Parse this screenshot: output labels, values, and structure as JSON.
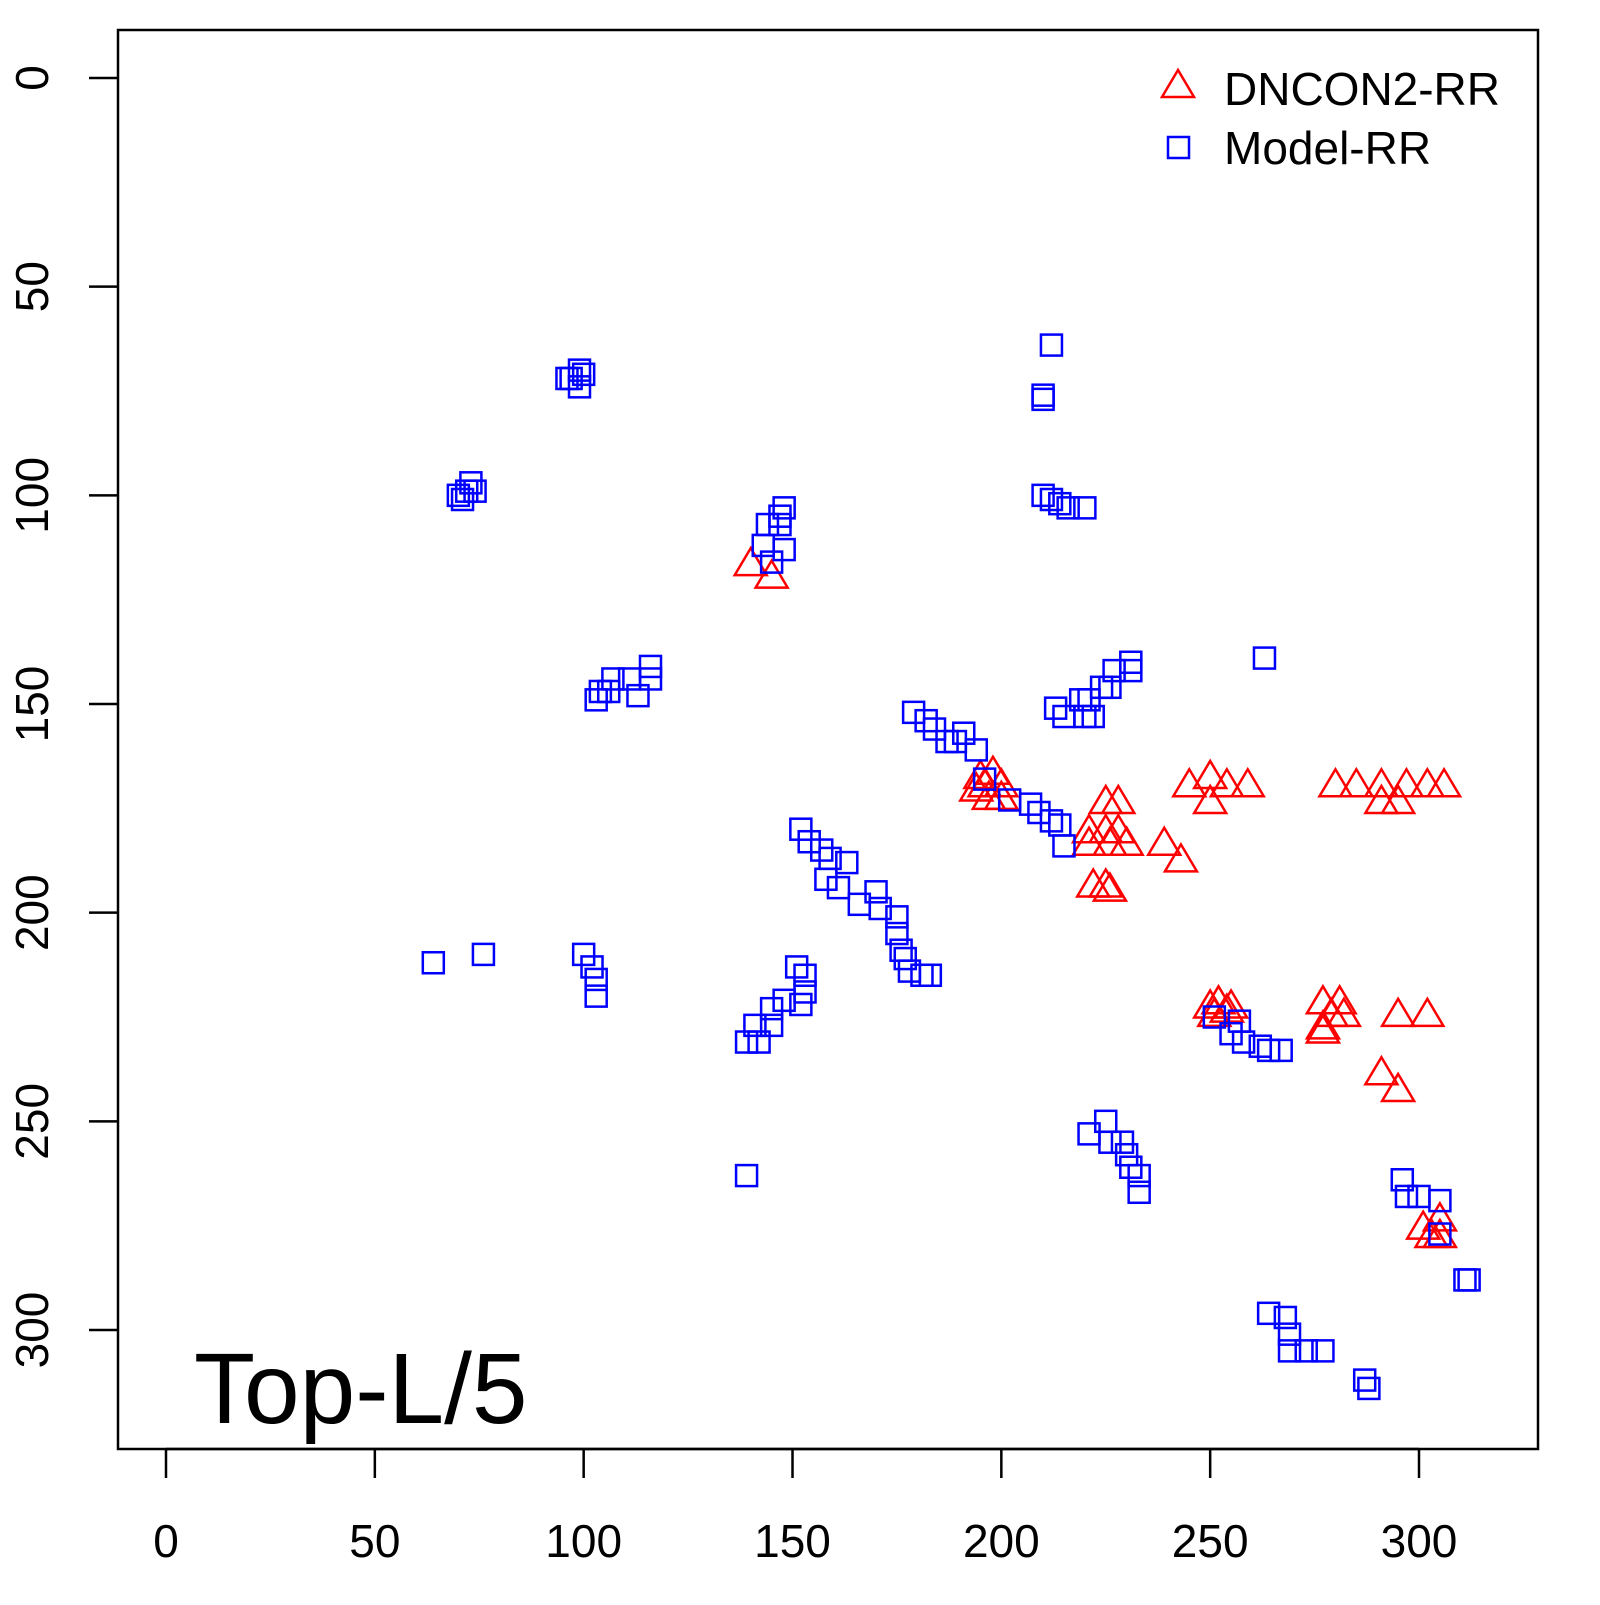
{
  "chart_data": {
    "type": "scatter",
    "title": "",
    "annotation": "Top-L/5",
    "xlabel": "",
    "ylabel": "",
    "xlim": [
      -12,
      328
    ],
    "ylim": [
      -12,
      328
    ],
    "y_inverted": true,
    "x_ticks": [
      0,
      50,
      100,
      150,
      200,
      250,
      300
    ],
    "y_ticks": [
      0,
      50,
      100,
      150,
      200,
      250,
      300
    ],
    "grid": false,
    "legend_position": "top-right",
    "series": [
      {
        "name": "DNCON2-RR",
        "marker": "triangle",
        "color": "#ff0000",
        "points": [
          [
            140,
            116
          ],
          [
            145,
            119
          ],
          [
            195,
            167
          ],
          [
            196,
            169
          ],
          [
            198,
            166
          ],
          [
            200,
            169
          ],
          [
            197,
            172
          ],
          [
            194,
            170
          ],
          [
            200,
            172
          ],
          [
            228,
            173
          ],
          [
            225,
            173
          ],
          [
            221,
            180
          ],
          [
            225,
            180
          ],
          [
            228,
            180
          ],
          [
            221,
            183
          ],
          [
            226,
            183
          ],
          [
            230,
            183
          ],
          [
            222,
            193
          ],
          [
            225,
            193
          ],
          [
            226,
            194
          ],
          [
            239,
            183
          ],
          [
            243,
            187
          ],
          [
            245,
            169
          ],
          [
            250,
            167
          ],
          [
            250,
            173
          ],
          [
            254,
            169
          ],
          [
            259,
            169
          ],
          [
            280,
            169
          ],
          [
            285,
            169
          ],
          [
            291,
            169
          ],
          [
            291,
            173
          ],
          [
            295,
            173
          ],
          [
            297,
            169
          ],
          [
            302,
            169
          ],
          [
            306,
            169
          ],
          [
            250,
            222
          ],
          [
            252,
            221
          ],
          [
            254,
            223
          ],
          [
            255,
            222
          ],
          [
            251,
            224
          ],
          [
            277,
            221
          ],
          [
            281,
            221
          ],
          [
            277,
            227
          ],
          [
            279,
            224
          ],
          [
            282,
            224
          ],
          [
            277,
            228
          ],
          [
            295,
            224
          ],
          [
            302,
            224
          ],
          [
            291,
            238
          ],
          [
            295,
            242
          ],
          [
            301,
            275
          ],
          [
            305,
            273
          ],
          [
            305,
            277
          ],
          [
            303,
            277
          ]
        ]
      },
      {
        "name": "Model-RR",
        "marker": "square",
        "color": "#0000ff",
        "points": [
          [
            96,
            72
          ],
          [
            99,
            70
          ],
          [
            100,
            71
          ],
          [
            99,
            74
          ],
          [
            97,
            72
          ],
          [
            72,
            99
          ],
          [
            70,
            100
          ],
          [
            73,
            97
          ],
          [
            71,
            101
          ],
          [
            74,
            99
          ],
          [
            212,
            64
          ],
          [
            210,
            76
          ],
          [
            210,
            77
          ],
          [
            210,
            100
          ],
          [
            212,
            101
          ],
          [
            214,
            102
          ],
          [
            216,
            103
          ],
          [
            220,
            103
          ],
          [
            148,
            103
          ],
          [
            147,
            105
          ],
          [
            147,
            107
          ],
          [
            144,
            107
          ],
          [
            143,
            112
          ],
          [
            148,
            113
          ],
          [
            145,
            116
          ],
          [
            103,
            149
          ],
          [
            104,
            147
          ],
          [
            106,
            147
          ],
          [
            107,
            144
          ],
          [
            111,
            144
          ],
          [
            113,
            148
          ],
          [
            116,
            144
          ],
          [
            116,
            141
          ],
          [
            263,
            139
          ],
          [
            231,
            140
          ],
          [
            231,
            142
          ],
          [
            227,
            142
          ],
          [
            226,
            146
          ],
          [
            224,
            146
          ],
          [
            221,
            149
          ],
          [
            219,
            149
          ],
          [
            213,
            151
          ],
          [
            215,
            153
          ],
          [
            220,
            153
          ],
          [
            222,
            153
          ],
          [
            179,
            152
          ],
          [
            182,
            154
          ],
          [
            184,
            156
          ],
          [
            187,
            159
          ],
          [
            189,
            159
          ],
          [
            191,
            157
          ],
          [
            194,
            161
          ],
          [
            196,
            168
          ],
          [
            202,
            173
          ],
          [
            207,
            174
          ],
          [
            209,
            176
          ],
          [
            212,
            178
          ],
          [
            214,
            179
          ],
          [
            215,
            184
          ],
          [
            152,
            180
          ],
          [
            154,
            183
          ],
          [
            157,
            185
          ],
          [
            159,
            187
          ],
          [
            163,
            188
          ],
          [
            158,
            192
          ],
          [
            161,
            194
          ],
          [
            166,
            198
          ],
          [
            170,
            195
          ],
          [
            171,
            199
          ],
          [
            175,
            201
          ],
          [
            175,
            205
          ],
          [
            176,
            209
          ],
          [
            177,
            211
          ],
          [
            178,
            214
          ],
          [
            181,
            215
          ],
          [
            183,
            215
          ],
          [
            64,
            212
          ],
          [
            76,
            210
          ],
          [
            100,
            210
          ],
          [
            102,
            213
          ],
          [
            103,
            216
          ],
          [
            103,
            220
          ],
          [
            151,
            213
          ],
          [
            153,
            215
          ],
          [
            153,
            219
          ],
          [
            152,
            222
          ],
          [
            148,
            221
          ],
          [
            145,
            223
          ],
          [
            145,
            227
          ],
          [
            141,
            227
          ],
          [
            139,
            231
          ],
          [
            142,
            231
          ],
          [
            139,
            263
          ],
          [
            251,
            225
          ],
          [
            257,
            226
          ],
          [
            255,
            229
          ],
          [
            258,
            231
          ],
          [
            262,
            232
          ],
          [
            264,
            233
          ],
          [
            267,
            233
          ],
          [
            225,
            250
          ],
          [
            221,
            253
          ],
          [
            226,
            255
          ],
          [
            229,
            255
          ],
          [
            230,
            258
          ],
          [
            231,
            261
          ],
          [
            233,
            263
          ],
          [
            233,
            267
          ],
          [
            296,
            264
          ],
          [
            297,
            268
          ],
          [
            300,
            268
          ],
          [
            305,
            269
          ],
          [
            305,
            277
          ],
          [
            312,
            288
          ],
          [
            311,
            288
          ],
          [
            264,
            296
          ],
          [
            268,
            297
          ],
          [
            269,
            301
          ],
          [
            269,
            305
          ],
          [
            273,
            305
          ],
          [
            277,
            305
          ],
          [
            287,
            312
          ],
          [
            288,
            314
          ]
        ]
      }
    ]
  }
}
